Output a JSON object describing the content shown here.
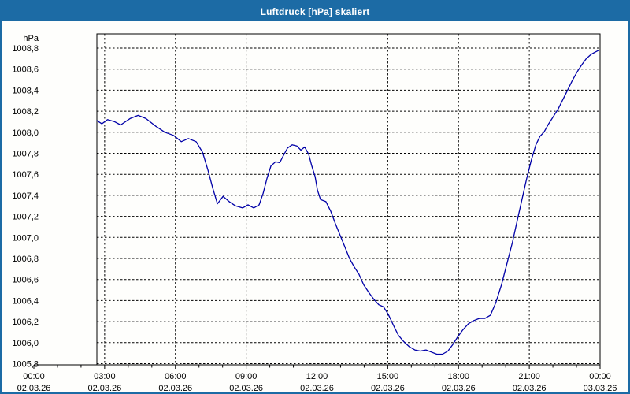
{
  "window": {
    "title": "Luftdruck [hPa] skaliert",
    "title_bg": "#1c6ba5",
    "title_color": "#ffffff",
    "border_color": "#1c6ba5",
    "content_bg": "#fefefc"
  },
  "chart_data": {
    "type": "line",
    "title": "Luftdruck [hPa] skaliert",
    "ylabel": "hPa",
    "y_unit_label": "hPa",
    "ylim": [
      1005.8,
      1008.8
    ],
    "y_step": 0.2,
    "y_tick_labels": [
      "1008,8",
      "1008,6",
      "1008,4",
      "1008,2",
      "1008,0",
      "1007,8",
      "1007,6",
      "1007,4",
      "1007,2",
      "1007,0",
      "1006,8",
      "1006,6",
      "1006,4",
      "1006,2",
      "1006,0",
      "1005,8"
    ],
    "x_range_hours": [
      0,
      24
    ],
    "x_major_tick_hours": 3,
    "x_minor_tick_hours": 1,
    "x_ticks": [
      {
        "time": "00:00",
        "date": "02.03.26"
      },
      {
        "time": "03:00",
        "date": "02.03.26"
      },
      {
        "time": "06:00",
        "date": "02.03.26"
      },
      {
        "time": "09:00",
        "date": "02.03.26"
      },
      {
        "time": "12:00",
        "date": "02.03.26"
      },
      {
        "time": "15:00",
        "date": "02.03.26"
      },
      {
        "time": "18:00",
        "date": "02.03.26"
      },
      {
        "time": "21:00",
        "date": "02.03.26"
      },
      {
        "time": "00:00",
        "date": "03.03.26"
      }
    ],
    "grid": "dashed",
    "legend": "none",
    "line_color": "#0000a8",
    "grid_color": "#000000",
    "data_start_hour": 2.68,
    "series": [
      {
        "name": "Luftdruck",
        "t_hours": [
          2.68,
          2.88,
          3.12,
          3.42,
          3.68,
          4.08,
          4.42,
          4.75,
          5.15,
          5.55,
          5.92,
          6.25,
          6.55,
          6.88,
          7.15,
          7.38,
          7.58,
          7.78,
          8.02,
          8.28,
          8.55,
          8.85,
          9.08,
          9.32,
          9.55,
          9.72,
          9.88,
          10.05,
          10.25,
          10.42,
          10.58,
          10.75,
          10.95,
          11.15,
          11.32,
          11.48,
          11.65,
          11.78,
          11.92,
          12.02,
          12.15,
          12.38,
          12.58,
          12.78,
          12.98,
          13.18,
          13.38,
          13.58,
          13.78,
          13.98,
          14.22,
          14.42,
          14.62,
          14.82,
          15.02,
          15.25,
          15.45,
          15.68,
          15.92,
          16.15,
          16.38,
          16.62,
          16.85,
          17.08,
          17.32,
          17.55,
          17.75,
          17.95,
          18.18,
          18.42,
          18.65,
          18.88,
          19.12,
          19.35,
          19.58,
          19.82,
          20.05,
          20.28,
          20.48,
          20.68,
          20.88,
          21.08,
          21.28,
          21.45,
          21.62,
          21.82,
          22.02,
          22.22,
          22.42,
          22.62,
          22.82,
          23.02,
          23.22,
          23.42,
          23.62,
          23.78,
          23.95
        ],
        "values_hpa": [
          1008.11,
          1008.08,
          1008.12,
          1008.1,
          1008.07,
          1008.13,
          1008.16,
          1008.13,
          1008.06,
          1008.0,
          1007.97,
          1007.91,
          1007.94,
          1007.91,
          1007.81,
          1007.64,
          1007.47,
          1007.32,
          1007.39,
          1007.34,
          1007.3,
          1007.28,
          1007.31,
          1007.28,
          1007.31,
          1007.42,
          1007.56,
          1007.68,
          1007.72,
          1007.71,
          1007.78,
          1007.85,
          1007.88,
          1007.87,
          1007.83,
          1007.86,
          1007.79,
          1007.68,
          1007.58,
          1007.45,
          1007.36,
          1007.34,
          1007.25,
          1007.13,
          1007.02,
          1006.91,
          1006.8,
          1006.72,
          1006.65,
          1006.55,
          1006.47,
          1006.41,
          1006.36,
          1006.34,
          1006.27,
          1006.16,
          1006.07,
          1006.01,
          1005.96,
          1005.93,
          1005.92,
          1005.93,
          1005.91,
          1005.89,
          1005.89,
          1005.92,
          1005.98,
          1006.05,
          1006.12,
          1006.18,
          1006.21,
          1006.23,
          1006.23,
          1006.26,
          1006.38,
          1006.55,
          1006.75,
          1006.95,
          1007.15,
          1007.35,
          1007.55,
          1007.73,
          1007.88,
          1007.96,
          1008.0,
          1008.08,
          1008.15,
          1008.22,
          1008.31,
          1008.4,
          1008.49,
          1008.57,
          1008.64,
          1008.7,
          1008.74,
          1008.76,
          1008.78
        ]
      }
    ]
  }
}
